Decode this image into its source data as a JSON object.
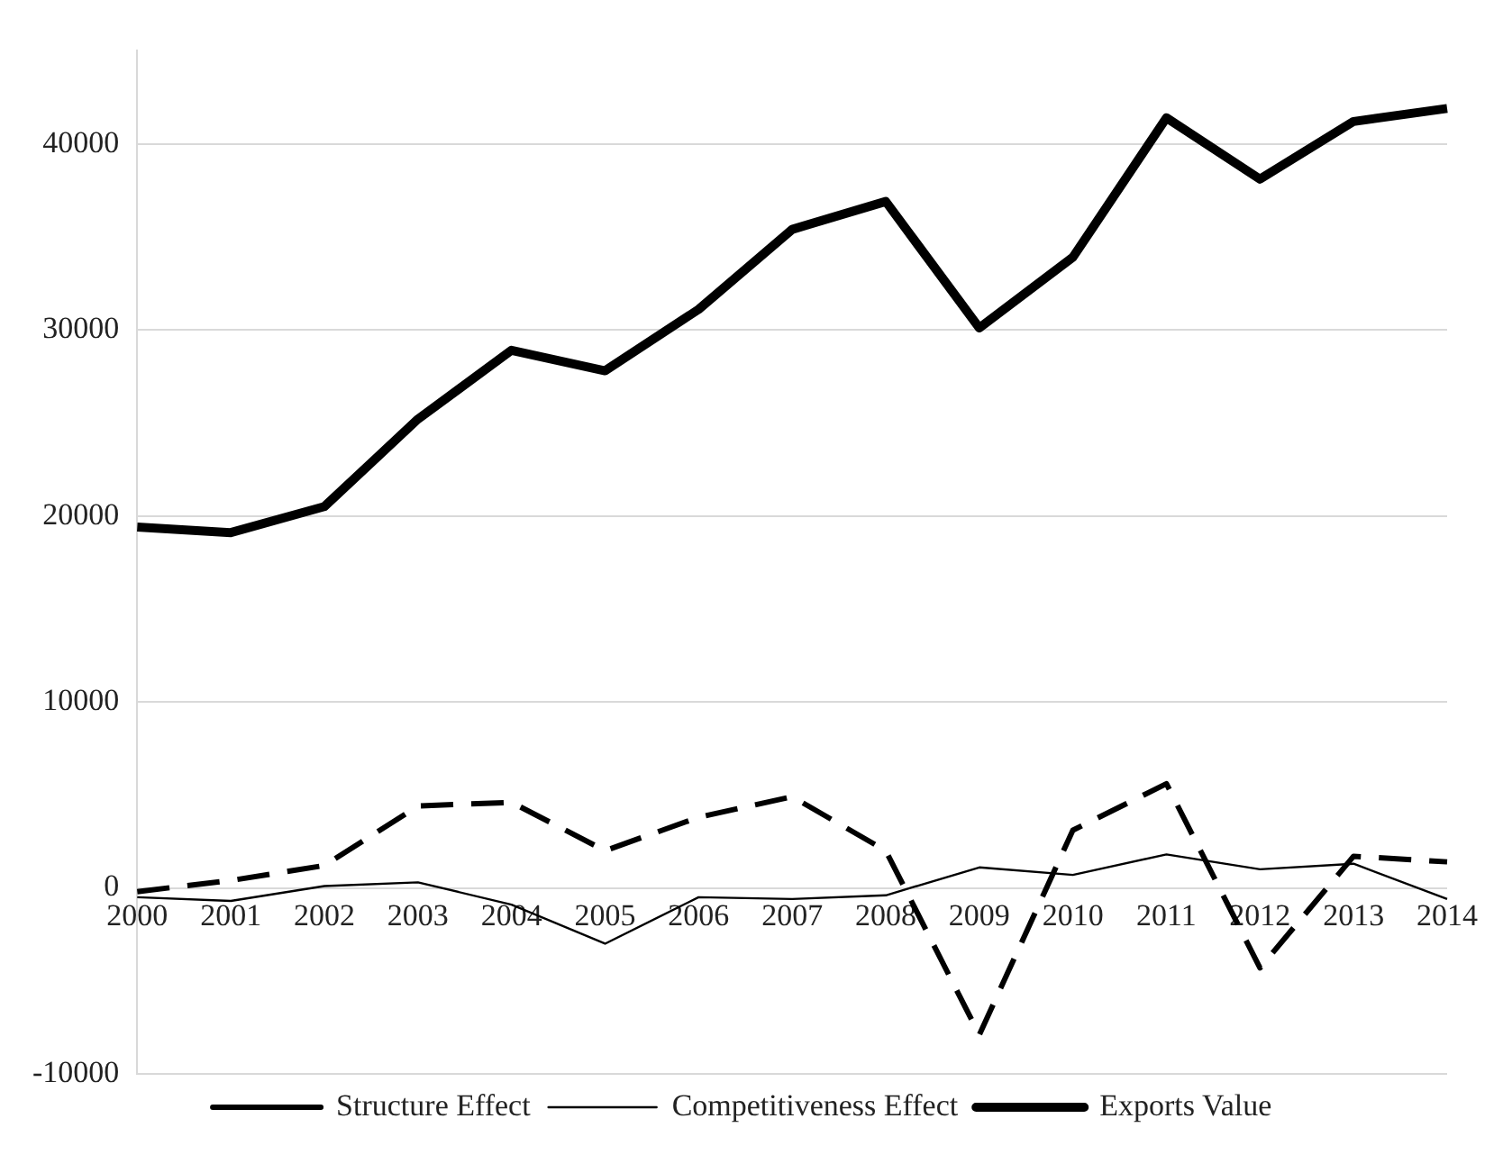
{
  "chart_data": {
    "type": "line",
    "categories": [
      "2000",
      "2001",
      "2002",
      "2003",
      "2004",
      "2005",
      "2006",
      "2007",
      "2008",
      "2009",
      "2010",
      "2011",
      "2012",
      "2013",
      "2014"
    ],
    "series": [
      {
        "name": "Structure Effect",
        "color": "#000000",
        "line_style": "dashed",
        "values": [
          -200,
          400,
          1200,
          4400,
          4600,
          2000,
          3800,
          4900,
          2000,
          -7900,
          3100,
          5600,
          -4300,
          1700,
          1400
        ]
      },
      {
        "name": "Competitiveness Effect",
        "color": "#000000",
        "line_style": "solid",
        "values": [
          -500,
          -700,
          100,
          300,
          -900,
          -3000,
          -500,
          -600,
          -400,
          1100,
          700,
          1800,
          1000,
          1300,
          -600
        ]
      },
      {
        "name": "Exports Value",
        "color": "#000000",
        "line_style": "solid",
        "values": [
          19400,
          19100,
          20500,
          25200,
          28900,
          27800,
          31100,
          35400,
          36900,
          30100,
          33900,
          41400,
          38100,
          41200,
          41900
        ]
      }
    ],
    "ylim": [
      -10000,
      45000
    ],
    "yticks": [
      -10000,
      0,
      10000,
      20000,
      30000,
      40000
    ],
    "grid": "y",
    "legend": "bottom",
    "marker": "none"
  }
}
